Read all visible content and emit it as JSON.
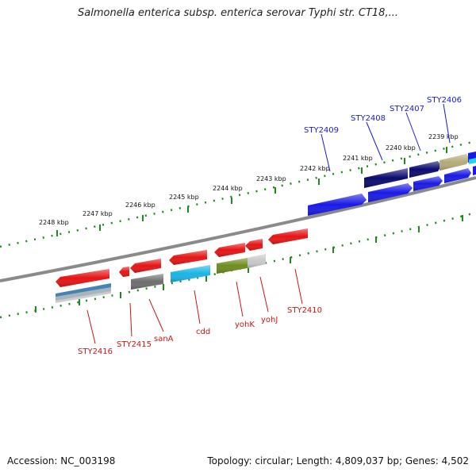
{
  "title": "Salmonella enterica subsp. enterica serovar Typhi str. CT18,...",
  "footer": {
    "accession": "Accession: NC_003198",
    "topology": "Topology: circular; Length: 4,809,037 bp; Genes: 4,502"
  },
  "colors": {
    "backbone": "#888888",
    "tick": "#1e8a1e",
    "forward_gene": "#1a1ae6",
    "forward_gene_dark": "#0a0a6e",
    "reverse_gene": "#e61414",
    "cds_gray": "#6e6e6e",
    "cds_cyan": "#19b4e6",
    "cds_olive": "#6e8c1e",
    "cds_steel": "#4682b4",
    "cds_tan": "#b4aa78",
    "cds_lightgray": "#c8c8c8",
    "forward_label": "#1a1acc",
    "reverse_label": "#cc1414"
  },
  "ruler": {
    "tick_labels": [
      "2248 kbp",
      "2247 kbp",
      "2246 kbp",
      "2245 kbp",
      "2244 kbp",
      "2243 kbp",
      "2242 kbp",
      "2241 kbp",
      "2240 kbp",
      "2239 kbp"
    ]
  },
  "forward_labels": [
    "STY2409",
    "STY2408",
    "STY2407",
    "STY2406"
  ],
  "reverse_labels": [
    "STY2416",
    "STY2415",
    "sanA",
    "cdd",
    "yohK",
    "yohJ",
    "STY2410"
  ]
}
